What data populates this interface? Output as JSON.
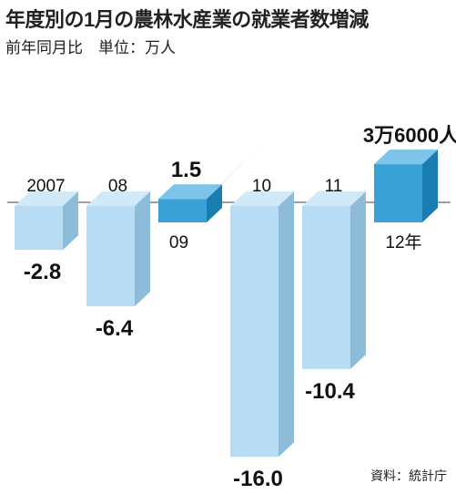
{
  "header": {
    "title": "年度別の1月の農林水産業の就業者数増減",
    "subtitle": "前年同月比　単位：万人"
  },
  "source": "資料：統計庁",
  "colors": {
    "negative_front": "#b7dcf3",
    "negative_side": "#8cbcd8",
    "negative_top": "#d2eaf8",
    "positive_front": "#3aa1d6",
    "positive_side": "#1a7db1",
    "positive_top": "#7cc4e9",
    "baseline": "#666666",
    "text": "#111111"
  },
  "chart_data": {
    "type": "bar",
    "title": "年度別の1月の農林水産業の就業者数増減",
    "subtitle": "前年同月比　単位：万人",
    "categories": [
      "2007",
      "08",
      "09",
      "10",
      "11",
      "12年"
    ],
    "values": [
      -2.8,
      -6.4,
      1.5,
      -16.0,
      -10.4,
      3.6
    ],
    "value_labels": [
      "-2.8",
      "-6.4",
      "1.5",
      "-16.0",
      "-10.4",
      "3万6000人"
    ],
    "unit": "万人",
    "grid": false,
    "legend": "none"
  }
}
